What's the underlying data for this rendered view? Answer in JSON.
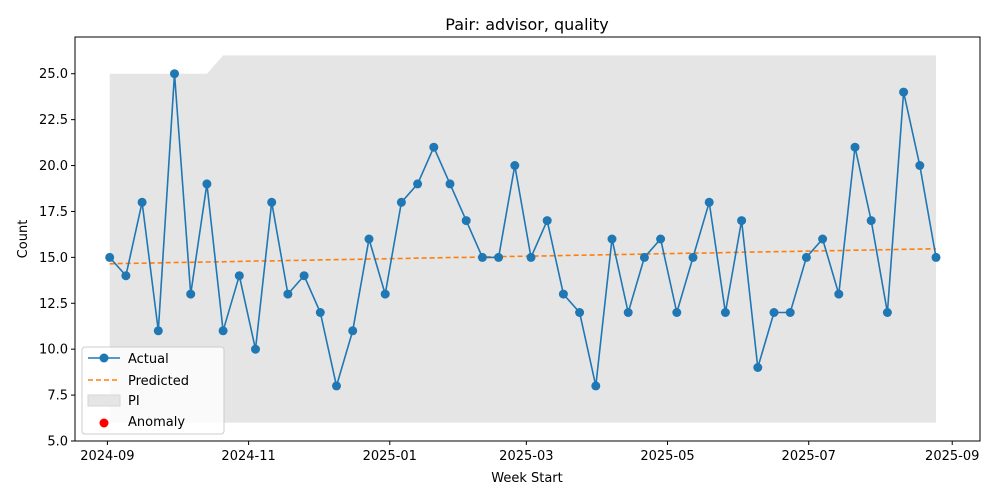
{
  "chart_data": {
    "type": "line",
    "title": "Pair: advisor, quality",
    "xlabel": "Week Start",
    "ylabel": "Count",
    "ylim": [
      5.0,
      27.0
    ],
    "xlim": [
      "2024-08-18",
      "2025-09-13"
    ],
    "yticks": [
      5.0,
      7.5,
      10.0,
      12.5,
      15.0,
      17.5,
      20.0,
      22.5,
      25.0
    ],
    "ytick_labels": [
      "5.0",
      "7.5",
      "10.0",
      "12.5",
      "15.0",
      "17.5",
      "20.0",
      "22.5",
      "25.0"
    ],
    "xticks": [
      "2024-09-01",
      "2024-11-01",
      "2025-01-01",
      "2025-03-01",
      "2025-05-01",
      "2025-07-01",
      "2025-09-01"
    ],
    "xtick_labels": [
      "2024-09",
      "2024-11",
      "2025-01",
      "2025-03",
      "2025-05",
      "2025-07",
      "2025-09"
    ],
    "grid": false,
    "legend_position": "lower-left",
    "x": [
      "2024-09-02",
      "2024-09-09",
      "2024-09-16",
      "2024-09-23",
      "2024-09-30",
      "2024-10-07",
      "2024-10-14",
      "2024-10-21",
      "2024-10-28",
      "2024-11-04",
      "2024-11-11",
      "2024-11-18",
      "2024-11-25",
      "2024-12-02",
      "2024-12-09",
      "2024-12-16",
      "2024-12-23",
      "2024-12-30",
      "2025-01-06",
      "2025-01-13",
      "2025-01-20",
      "2025-01-27",
      "2025-02-03",
      "2025-02-10",
      "2025-02-17",
      "2025-02-24",
      "2025-03-03",
      "2025-03-10",
      "2025-03-17",
      "2025-03-24",
      "2025-03-31",
      "2025-04-07",
      "2025-04-14",
      "2025-04-21",
      "2025-04-28",
      "2025-05-05",
      "2025-05-12",
      "2025-05-19",
      "2025-05-26",
      "2025-06-02",
      "2025-06-09",
      "2025-06-16",
      "2025-06-23",
      "2025-06-30",
      "2025-07-07",
      "2025-07-14",
      "2025-07-21",
      "2025-07-28",
      "2025-08-04",
      "2025-08-11",
      "2025-08-18",
      "2025-08-25"
    ],
    "series": [
      {
        "name": "Actual",
        "style": "line-markers",
        "color": "#1f77b4",
        "values": [
          15,
          14,
          18,
          11,
          25,
          13,
          19,
          11,
          14,
          10,
          18,
          13,
          14,
          12,
          8,
          11,
          16,
          13,
          18,
          19,
          21,
          19,
          17,
          15,
          15,
          20,
          15,
          17,
          13,
          12,
          8,
          16,
          12,
          15,
          16,
          12,
          15,
          18,
          12,
          17,
          9,
          12,
          12,
          15,
          16,
          13,
          21,
          17,
          12,
          24,
          20,
          15
        ]
      },
      {
        "name": "Predicted",
        "style": "dashed",
        "color": "#ff7f0e",
        "values": [
          14.65,
          14.67,
          14.68,
          14.7,
          14.72,
          14.73,
          14.75,
          14.76,
          14.78,
          14.8,
          14.81,
          14.83,
          14.84,
          14.86,
          14.88,
          14.89,
          14.91,
          14.92,
          14.94,
          14.96,
          14.97,
          14.99,
          15.0,
          15.02,
          15.04,
          15.05,
          15.07,
          15.08,
          15.1,
          15.12,
          15.13,
          15.15,
          15.16,
          15.18,
          15.2,
          15.21,
          15.23,
          15.24,
          15.26,
          15.28,
          15.29,
          15.31,
          15.32,
          15.34,
          15.36,
          15.37,
          15.39,
          15.4,
          15.42,
          15.44,
          15.45,
          15.47
        ]
      }
    ],
    "interval": {
      "name": "PI",
      "color": "#e5e5e5",
      "upper": [
        25,
        25,
        25,
        25,
        25,
        25,
        25,
        26,
        26,
        26,
        26,
        26,
        26,
        26,
        26,
        26,
        26,
        26,
        26,
        26,
        26,
        26,
        26,
        26,
        26,
        26,
        26,
        26,
        26,
        26,
        26,
        26,
        26,
        26,
        26,
        26,
        26,
        26,
        26,
        26,
        26,
        26,
        26,
        26,
        26,
        26,
        26,
        26,
        26,
        26,
        26,
        26
      ],
      "lower": [
        6,
        6,
        6,
        6,
        6,
        6,
        6,
        6,
        6,
        6,
        6,
        6,
        6,
        6,
        6,
        6,
        6,
        6,
        6,
        6,
        6,
        6,
        6,
        6,
        6,
        6,
        6,
        6,
        6,
        6,
        6,
        6,
        6,
        6,
        6,
        6,
        6,
        6,
        6,
        6,
        6,
        6,
        6,
        6,
        6,
        6,
        6,
        6,
        6,
        6,
        6,
        6
      ]
    },
    "anomalies": {
      "name": "Anomaly",
      "color": "#ff0000",
      "x": [],
      "values": []
    }
  }
}
